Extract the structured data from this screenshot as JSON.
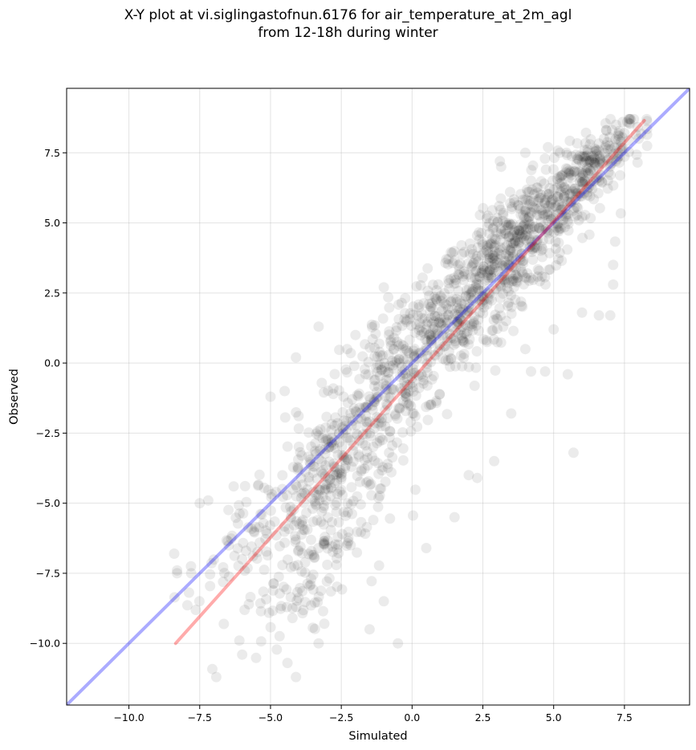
{
  "chart_data": {
    "type": "scatter",
    "title_lines": [
      "X-Y plot at vi.siglingastofnun.6176 for air_temperature_at_2m_agl",
      "from 12-18h during winter"
    ],
    "xlabel": "Simulated",
    "ylabel": "Observed",
    "xlim": [
      -12.2,
      9.8
    ],
    "ylim": [
      -12.2,
      9.8
    ],
    "xticks": [
      -10.0,
      -7.5,
      -5.0,
      -2.5,
      0.0,
      2.5,
      5.0,
      7.5
    ],
    "yticks": [
      -10.0,
      -7.5,
      -5.0,
      -2.5,
      0.0,
      2.5,
      5.0,
      7.5
    ],
    "xtick_labels": [
      "−10.0",
      "−7.5",
      "−5.0",
      "−2.5",
      "0.0",
      "2.5",
      "5.0",
      "7.5"
    ],
    "ytick_labels": [
      "−10.0",
      "−7.5",
      "−5.0",
      "−2.5",
      "0.0",
      "2.5",
      "5.0",
      "7.5"
    ],
    "grid": true,
    "point_color": "#000000",
    "point_alpha": 0.08,
    "identity_line": {
      "color": "#0000ff",
      "alpha": 0.33,
      "x": [
        -12.2,
        9.8
      ],
      "y": [
        -12.2,
        9.8
      ]
    },
    "fit_line": {
      "color": "#ff0000",
      "alpha": 0.33,
      "x": [
        -8.35,
        8.2
      ],
      "y": [
        -10.0,
        8.65
      ]
    },
    "clusters": [
      {
        "cx": 6.2,
        "cy": 6.9,
        "sx": 1.0,
        "sy": 0.8,
        "n": 220
      },
      {
        "cx": 3.8,
        "cy": 4.3,
        "sx": 1.5,
        "sy": 1.3,
        "n": 420
      },
      {
        "cx": 1.5,
        "cy": 1.8,
        "sx": 1.4,
        "sy": 1.6,
        "n": 300
      },
      {
        "cx": -0.5,
        "cy": -0.5,
        "sx": 1.3,
        "sy": 1.5,
        "n": 200
      },
      {
        "cx": -2.7,
        "cy": -3.6,
        "sx": 1.2,
        "sy": 1.6,
        "n": 240
      },
      {
        "cx": -3.6,
        "cy": -7.0,
        "sx": 1.3,
        "sy": 1.5,
        "n": 160
      },
      {
        "cx": -6.0,
        "cy": -6.3,
        "sx": 1.0,
        "sy": 1.2,
        "n": 60
      }
    ],
    "extra_points": [
      [
        7.2,
        8.5
      ],
      [
        7.6,
        8.6
      ],
      [
        7.1,
        3.5
      ],
      [
        7.1,
        2.8
      ],
      [
        7.0,
        1.7
      ],
      [
        6.6,
        1.7
      ],
      [
        5.7,
        -3.2
      ],
      [
        5.5,
        -0.4
      ],
      [
        4.7,
        -0.3
      ],
      [
        4.2,
        -0.3
      ],
      [
        2.9,
        -3.5
      ],
      [
        2.3,
        -4.1
      ],
      [
        3.1,
        7.2
      ],
      [
        4.0,
        7.5
      ],
      [
        4.8,
        7.7
      ],
      [
        -3.3,
        1.3
      ],
      [
        -4.1,
        0.2
      ],
      [
        -4.1,
        -11.2
      ],
      [
        -4.4,
        -10.7
      ],
      [
        -6.0,
        -10.4
      ],
      [
        -6.1,
        -9.9
      ],
      [
        -3.3,
        -10.0
      ],
      [
        -3.1,
        -9.3
      ],
      [
        -8.3,
        -7.5
      ],
      [
        -8.3,
        -7.4
      ],
      [
        -7.8,
        -7.5
      ],
      [
        -7.5,
        -5.0
      ],
      [
        -7.2,
        -4.9
      ],
      [
        -6.3,
        -4.4
      ],
      [
        -2.0,
        1.0
      ],
      [
        -1.0,
        2.7
      ],
      [
        0.5,
        -6.6
      ],
      [
        -0.5,
        -10.0
      ],
      [
        -1.5,
        -9.5
      ],
      [
        -1.0,
        -8.5
      ],
      [
        1.5,
        -5.5
      ],
      [
        2.0,
        -4.0
      ],
      [
        -5.0,
        -1.2
      ],
      [
        -4.5,
        -1.0
      ],
      [
        6.0,
        1.8
      ],
      [
        4.0,
        0.5
      ],
      [
        5.0,
        1.2
      ],
      [
        3.5,
        -1.8
      ]
    ]
  }
}
